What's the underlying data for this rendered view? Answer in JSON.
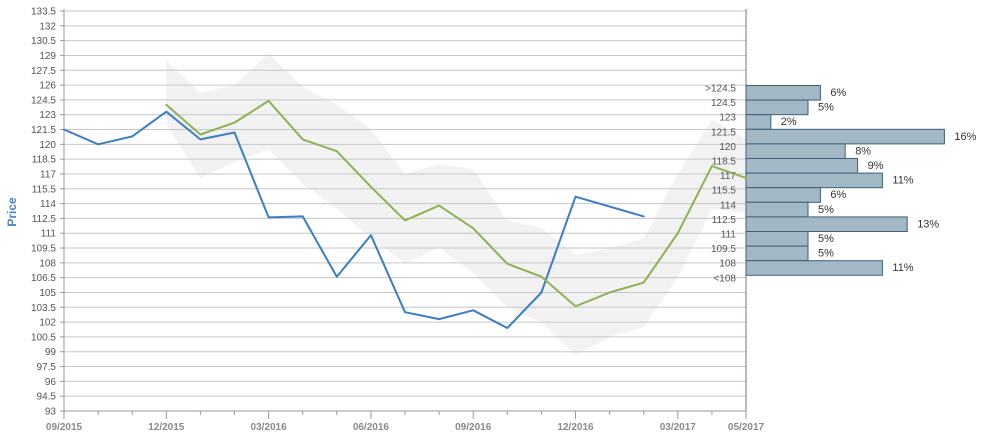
{
  "chart_data": {
    "type": "line",
    "xlabel": "",
    "ylabel": "Price",
    "ylim": [
      93,
      133.5
    ],
    "yticks": [
      "93",
      "94.5",
      "96",
      "97.5",
      "99",
      "100.5",
      "102",
      "103.5",
      "105",
      "106.5",
      "108",
      "109.5",
      "111",
      "112.5",
      "114",
      "115.5",
      "117",
      "118.5",
      "120",
      "121.5",
      "123",
      "124.5",
      "126",
      "127.5",
      "129",
      "130.5",
      "132",
      "133.5"
    ],
    "xticks": [
      "09/2015",
      "12/2015",
      "03/2016",
      "06/2016",
      "09/2016",
      "12/2016",
      "03/2017",
      "05/2017"
    ],
    "series": [
      {
        "values": [
          {
            "x": "2015-09",
            "y": 121.5
          },
          {
            "x": "2015-10",
            "y": 120.0
          },
          {
            "x": "2015-11",
            "y": 120.8
          },
          {
            "x": "2015-12",
            "y": 123.3
          },
          {
            "x": "2016-01",
            "y": 120.5
          },
          {
            "x": "2016-02",
            "y": 121.2
          },
          {
            "x": "2016-03",
            "y": 112.6
          },
          {
            "x": "2016-04",
            "y": 112.7
          },
          {
            "x": "2016-05",
            "y": 106.6
          },
          {
            "x": "2016-06",
            "y": 110.8
          },
          {
            "x": "2016-07",
            "y": 103.0
          },
          {
            "x": "2016-08",
            "y": 102.3
          },
          {
            "x": "2016-09",
            "y": 103.2
          },
          {
            "x": "2016-10",
            "y": 101.4
          },
          {
            "x": "2016-11",
            "y": 105.0
          },
          {
            "x": "2016-12",
            "y": 114.7
          },
          {
            "x": "2017-02",
            "y": 112.7
          }
        ]
      },
      {
        "values": [
          {
            "x": "2015-12",
            "y": 124.0
          },
          {
            "x": "2016-01",
            "y": 121.0
          },
          {
            "x": "2016-02",
            "y": 122.2
          },
          {
            "x": "2016-03",
            "y": 124.4
          },
          {
            "x": "2016-04",
            "y": 120.5
          },
          {
            "x": "2016-05",
            "y": 119.3
          },
          {
            "x": "2016-06",
            "y": 115.7
          },
          {
            "x": "2016-07",
            "y": 112.3
          },
          {
            "x": "2016-08",
            "y": 113.8
          },
          {
            "x": "2016-09",
            "y": 111.5
          },
          {
            "x": "2016-10",
            "y": 107.9
          },
          {
            "x": "2016-11",
            "y": 106.6
          },
          {
            "x": "2016-12",
            "y": 103.6
          },
          {
            "x": "2017-01",
            "y": 105.0
          },
          {
            "x": "2017-02",
            "y": 106.0
          },
          {
            "x": "2017-03",
            "y": 111.0
          },
          {
            "x": "2017-04",
            "y": 117.8
          },
          {
            "x": "2017-05",
            "y": 116.6
          }
        ]
      }
    ],
    "band": [
      {
        "x": "2015-12",
        "low": 122.0,
        "high": 128.5
      },
      {
        "x": "2016-01",
        "low": 116.6,
        "high": 125.2
      },
      {
        "x": "2016-02",
        "low": 118.2,
        "high": 126.0
      },
      {
        "x": "2016-03",
        "low": 119.5,
        "high": 129.2
      },
      {
        "x": "2016-04",
        "low": 116.0,
        "high": 125.8
      },
      {
        "x": "2016-05",
        "low": 113.5,
        "high": 124.0
      },
      {
        "x": "2016-06",
        "low": 110.5,
        "high": 121.5
      },
      {
        "x": "2016-07",
        "low": 108.0,
        "high": 117.0
      },
      {
        "x": "2016-08",
        "low": 109.5,
        "high": 118.0
      },
      {
        "x": "2016-09",
        "low": 107.0,
        "high": 117.5
      },
      {
        "x": "2016-10",
        "low": 103.5,
        "high": 112.3
      },
      {
        "x": "2016-11",
        "low": 102.0,
        "high": 111.5
      },
      {
        "x": "2016-12",
        "low": 98.7,
        "high": 108.8
      },
      {
        "x": "2017-01",
        "low": 100.5,
        "high": 109.5
      },
      {
        "x": "2017-02",
        "low": 101.5,
        "high": 110.5
      },
      {
        "x": "2017-03",
        "low": 106.5,
        "high": 117.0
      },
      {
        "x": "2017-04",
        "low": 113.5,
        "high": 122.5
      },
      {
        "x": "2017-05",
        "low": 113.0,
        "high": 120.5
      }
    ],
    "histogram": {
      "categories": [
        ">124.5",
        "124.5",
        "123",
        "121.5",
        "120",
        "118.5",
        "117",
        "115.5",
        "114",
        "112.5",
        "111",
        "109.5",
        "108",
        "<108"
      ],
      "percent_labels": [
        "6%",
        "5%",
        "2%",
        "16%",
        "8%",
        "9%",
        "11%",
        "6%",
        "5%",
        "13%",
        "5%",
        "5%",
        "11%",
        ""
      ],
      "values": [
        6,
        5,
        2,
        16,
        8,
        9,
        11,
        6,
        5,
        13,
        5,
        5,
        11,
        0
      ]
    },
    "grid": true,
    "colors": {
      "series_blue": "#3a7dc9",
      "series_green": "#8db255",
      "band": "#f2f2f2",
      "hist_fill": "#a3b8c5",
      "hist_stroke": "#3f5f78",
      "grid": "#c6c6c6"
    }
  }
}
